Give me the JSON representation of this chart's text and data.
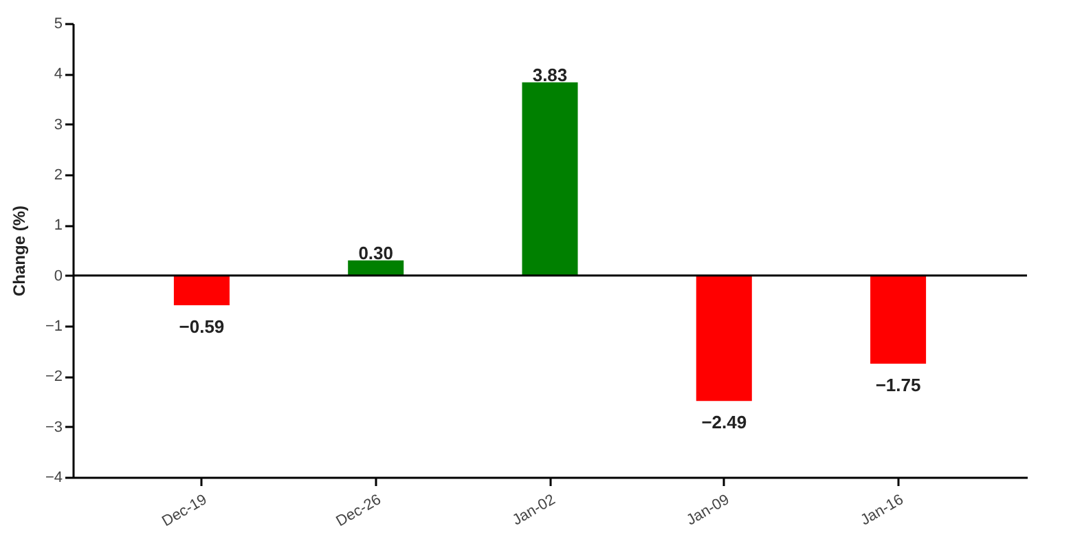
{
  "chart_data": {
    "type": "bar",
    "ylabel": "Change (%)",
    "categories": [
      "Dec-19",
      "Dec-26",
      "Jan-02",
      "Jan-09",
      "Jan-16"
    ],
    "values": [
      -0.59,
      0.3,
      3.83,
      -2.49,
      -1.75
    ],
    "colors": [
      "#ff0000",
      "#008000",
      "#008000",
      "#ff0000",
      "#ff0000"
    ],
    "value_labels": [
      "−0.59",
      "0.30",
      "3.83",
      "−2.49",
      "−1.75"
    ],
    "ylim": [
      -4,
      5
    ],
    "yticks": [
      -4,
      -3,
      -2,
      -1,
      0,
      1,
      2,
      3,
      4,
      5
    ],
    "ref_lines": [
      {
        "axis": "y",
        "value": 0,
        "color": "#000000"
      }
    ]
  }
}
